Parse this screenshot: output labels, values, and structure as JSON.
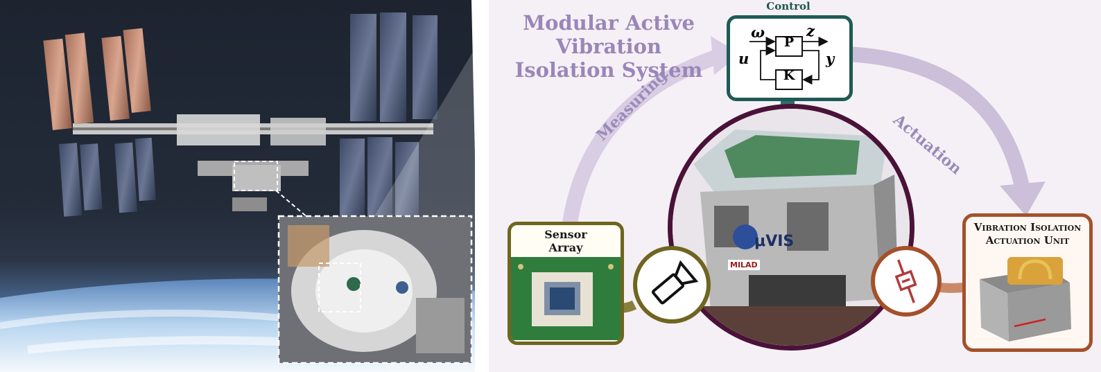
{
  "title": {
    "line1": "Modular Active Vibration",
    "line2": "Isolation System"
  },
  "control": {
    "label": "Control",
    "plant": "P",
    "controller": "K",
    "signals": {
      "omega": "ω",
      "z": "z",
      "u": "u",
      "y": "y"
    }
  },
  "flow": {
    "measuring": "Measuring",
    "actuation": "Actuation"
  },
  "sensor": {
    "label_line1": "Sensor",
    "label_line2": "Array"
  },
  "actuator": {
    "label_line1": "Vibration Isolation",
    "label_line2": "Actuation Unit"
  },
  "device": {
    "brand": "μVIS",
    "maker": "MILAD"
  },
  "colors": {
    "lavender": "#9a86b8",
    "control_border": "#1f5a56",
    "sensor_border": "#6f6520",
    "actuator_border": "#a5502a",
    "hub_border": "#4a1238"
  },
  "icons": [
    "camera-icon",
    "damper-icon",
    "iss-station-icon",
    "earth-horizon-icon"
  ]
}
